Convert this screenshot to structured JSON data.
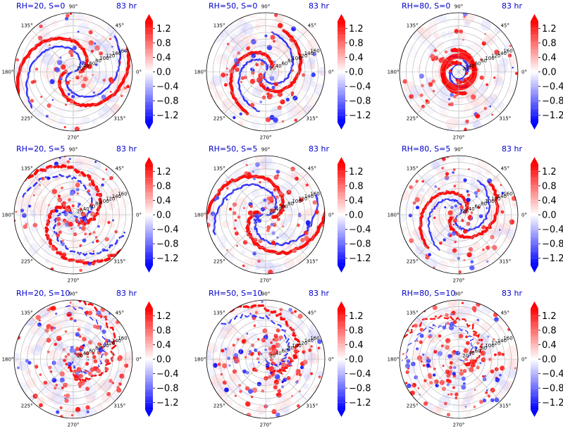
{
  "figure": {
    "time_label": "83 hr"
  },
  "chart_data": {
    "type": "heatmap",
    "projection": "polar",
    "colormap": "bwr",
    "colorbar_extend": "both",
    "color_limits": [
      -1.4,
      1.4
    ],
    "colorbar_ticks": [
      "1.2",
      "0.8",
      "0.4",
      "0.0",
      "−0.4",
      "−0.8",
      "−1.2"
    ],
    "colorbar_tick_values": [
      1.2,
      0.8,
      0.4,
      0.0,
      -0.4,
      -0.8,
      -1.2
    ],
    "angular_ticks": [
      "0°",
      "45°",
      "90°",
      "135°",
      "180°",
      "225°",
      "270°",
      "315°"
    ],
    "angular_tick_values": [
      0,
      45,
      90,
      135,
      180,
      225,
      270,
      315
    ],
    "radial_ticks": [
      "20",
      "40",
      "60",
      "80",
      "100",
      "120",
      "140",
      "160"
    ],
    "radial_tick_values": [
      20,
      40,
      60,
      80,
      100,
      120,
      140,
      160
    ],
    "radial_limit": 180,
    "radial_label_angle_deg": 22.5,
    "colors": {
      "positive": "#ff0000",
      "negative": "#0000ff",
      "neutral": "#ffffff",
      "title": "#0000cc"
    },
    "panels": [
      {
        "title": "RH=20, S=0",
        "rh": 20,
        "s": 0,
        "time": "83 hr",
        "pattern": {
          "arms": 2,
          "radial_extent": 175,
          "intensity": 1.0,
          "noise": 0.2
        }
      },
      {
        "title": "RH=50, S=0",
        "rh": 50,
        "s": 0,
        "time": "83 hr",
        "pattern": {
          "arms": 2,
          "radial_extent": 130,
          "intensity": 1.0,
          "noise": 0.2
        }
      },
      {
        "title": "RH=80, S=0",
        "rh": 80,
        "s": 0,
        "time": "83 hr",
        "pattern": {
          "arms": 2,
          "radial_extent": 60,
          "intensity": 1.2,
          "noise": 0.15
        }
      },
      {
        "title": "RH=20, S=5",
        "rh": 20,
        "s": 5,
        "time": "83 hr",
        "pattern": {
          "arms": 2,
          "radial_extent": 175,
          "intensity": 1.0,
          "noise": 0.45
        }
      },
      {
        "title": "RH=50, S=5",
        "rh": 50,
        "s": 5,
        "time": "83 hr",
        "pattern": {
          "arms": 2,
          "radial_extent": 175,
          "intensity": 1.0,
          "noise": 0.35
        }
      },
      {
        "title": "RH=80, S=5",
        "rh": 80,
        "s": 5,
        "time": "83 hr",
        "pattern": {
          "arms": 2,
          "radial_extent": 130,
          "intensity": 0.9,
          "noise": 0.3
        }
      },
      {
        "title": "RH=20, S=10",
        "rh": 20,
        "s": 10,
        "time": "83 hr",
        "pattern": {
          "arms": 1,
          "radial_extent": 175,
          "intensity": 0.6,
          "noise": 0.7
        }
      },
      {
        "title": "RH=50, S=10",
        "rh": 50,
        "s": 10,
        "time": "83 hr",
        "pattern": {
          "arms": 1,
          "radial_extent": 175,
          "intensity": 0.8,
          "noise": 0.7
        }
      },
      {
        "title": "RH=80, S=10",
        "rh": 80,
        "s": 10,
        "time": "83 hr",
        "pattern": {
          "arms": 1,
          "radial_extent": 175,
          "intensity": 0.5,
          "noise": 0.8
        }
      }
    ]
  }
}
